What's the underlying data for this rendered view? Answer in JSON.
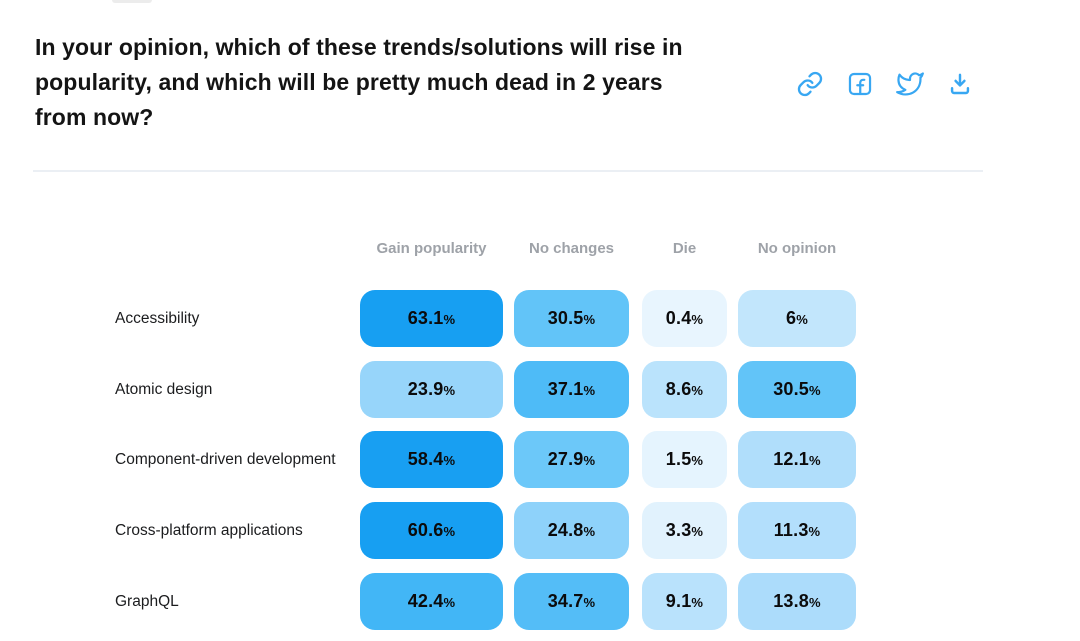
{
  "header": {
    "title_lines": [
      "In your opinion, which of these trends/solutions will rise in",
      "popularity, and which will be pretty much dead in 2 years",
      "from now?"
    ]
  },
  "share": {
    "icons": [
      {
        "name": "copy-link-icon"
      },
      {
        "name": "facebook-icon"
      },
      {
        "name": "twitter-icon"
      },
      {
        "name": "download-icon"
      }
    ],
    "icon_color": "#38a7f2"
  },
  "chart_data": {
    "type": "heatmap",
    "columns": [
      "Gain popularity",
      "No changes",
      "Die",
      "No opinion"
    ],
    "rows": [
      {
        "label": "Accessibility",
        "values": [
          63.1,
          30.5,
          0.4,
          6
        ],
        "value_labels": [
          "63.1%",
          "30.5%",
          "0.4%",
          "6%"
        ]
      },
      {
        "label": "Atomic design",
        "values": [
          23.9,
          37.1,
          8.6,
          30.5
        ],
        "value_labels": [
          "23.9%",
          "37.1%",
          "8.6%",
          "30.5%"
        ]
      },
      {
        "label": "Component-driven development",
        "values": [
          58.4,
          27.9,
          1.5,
          12.1
        ],
        "value_labels": [
          "58.4%",
          "27.9%",
          "1.5%",
          "12.1%"
        ]
      },
      {
        "label": "Cross-platform applications",
        "values": [
          60.6,
          24.8,
          3.3,
          11.3
        ],
        "value_labels": [
          "60.6%",
          "24.8%",
          "3.3%",
          "11.3%"
        ]
      },
      {
        "label": "GraphQL",
        "values": [
          42.4,
          34.7,
          9.1,
          13.8
        ],
        "value_labels": [
          "42.4%",
          "34.7%",
          "9.1%",
          "13.8%"
        ]
      }
    ],
    "value_unit": "%",
    "color_scale": {
      "stops": [
        {
          "value": 0,
          "color": "#E9F5FE"
        },
        {
          "value": 4,
          "color": "#DFF1FD"
        },
        {
          "value": 6,
          "color": "#C2E6FC"
        },
        {
          "value": 9,
          "color": "#B9E2FC"
        },
        {
          "value": 14,
          "color": "#ABDCFB"
        },
        {
          "value": 24,
          "color": "#97D5FA"
        },
        {
          "value": 28,
          "color": "#6BC8F9"
        },
        {
          "value": 35,
          "color": "#53BDF7"
        },
        {
          "value": 43,
          "color": "#41B5F6"
        },
        {
          "value": 50,
          "color": "#25A7F3"
        },
        {
          "value": 58,
          "color": "#189FF2"
        },
        {
          "value": 100,
          "color": "#0F9BF1"
        }
      ],
      "text_color": "#0b0b0c"
    },
    "legend": "none",
    "grid": false
  }
}
